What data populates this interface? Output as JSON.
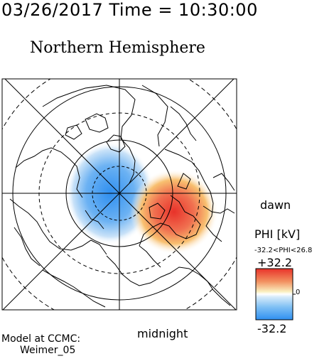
{
  "header": {
    "date_time": "03/26/2017 Time = 10:30:00",
    "hemisphere": "Northern Hemisphere"
  },
  "map": {
    "labels": {
      "dawn": "dawn",
      "midnight": "midnight"
    },
    "colors": {
      "negative": "#2f8ff0",
      "positive": "#e8322a",
      "neutral": "#ffffff",
      "mid_positive": "#f8d060",
      "lines": "#000000"
    }
  },
  "legend": {
    "title": "PHI [kV]",
    "range": "-32.2<PHI<26.8",
    "max": "+32.2",
    "min": "-32.2",
    "zero": "0"
  },
  "footer": {
    "model_line1": "Model at CCMC:",
    "model_line2": "Weimer_05"
  }
}
